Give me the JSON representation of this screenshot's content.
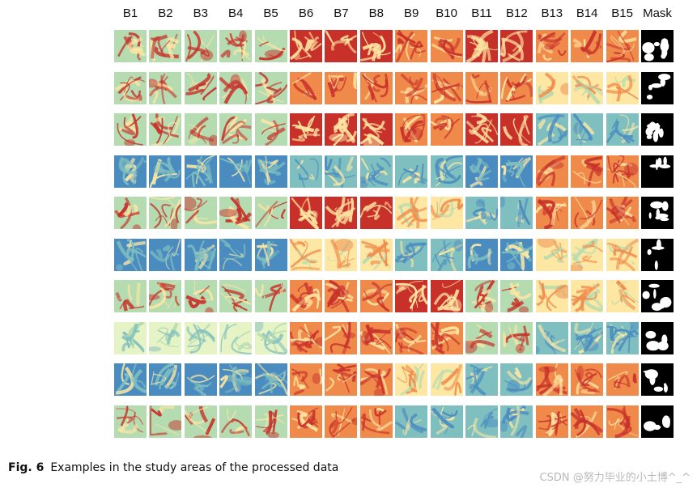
{
  "figure": {
    "columns": [
      "B1",
      "B2",
      "B3",
      "B4",
      "B5",
      "B6",
      "B7",
      "B8",
      "B9",
      "B10",
      "B11",
      "B12",
      "B13",
      "B14",
      "B15",
      "Mask"
    ],
    "row_count": 10,
    "palette": {
      "red": "#c8312a",
      "orange": "#f08a4b",
      "yellow": "#fde7a3",
      "pale": "#e6f3c4",
      "green": "#b5dbb0",
      "teal": "#7fbfbf",
      "blue": "#4a8cc0",
      "mask_bg": "#000000",
      "mask_fg": "#ffffff"
    }
  },
  "caption": {
    "label": "Fig. 6",
    "text": "Examples in the study areas of the processed data"
  },
  "watermark": {
    "text": "CSDN @努力毕业的小土博^_^"
  }
}
